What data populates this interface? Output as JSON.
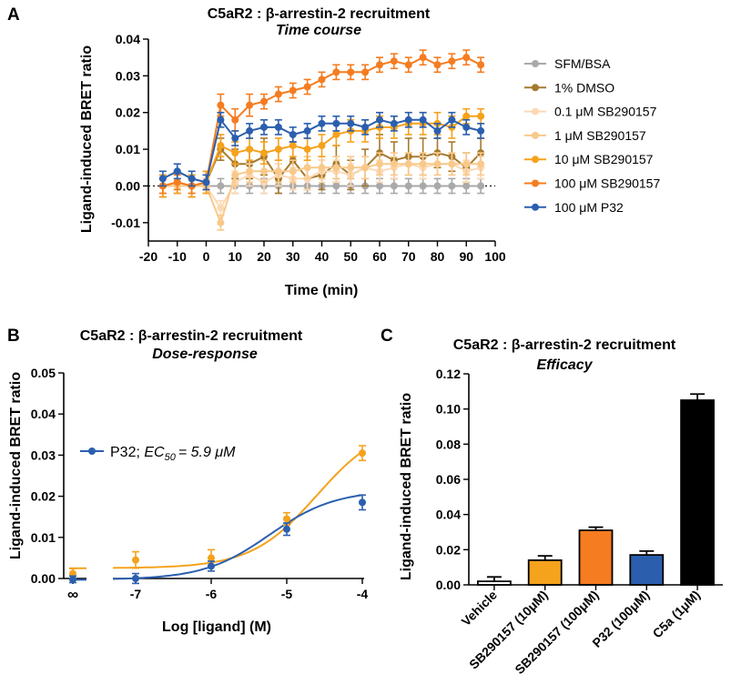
{
  "chart_data": [
    {
      "id": "A",
      "panel_label": "A",
      "type": "line",
      "title": "C5aR2 : β-arrestin-2 recruitment",
      "subtitle": "Time course",
      "xlabel": "Time (min)",
      "ylabel": "Ligand-induced BRET ratio",
      "xlim": [
        -20,
        100
      ],
      "ylim": [
        -0.015,
        0.04
      ],
      "x_ticks": [
        "-20",
        "-10",
        "0",
        "10",
        "20",
        "30",
        "40",
        "50",
        "60",
        "70",
        "80",
        "90",
        "100"
      ],
      "y_ticks": [
        "-0.01",
        "0.00",
        "0.01",
        "0.02",
        "0.03",
        "0.04"
      ],
      "zero_line": "dotted",
      "legend_position": "right",
      "x": [
        -15,
        -10,
        -5,
        0,
        5,
        10,
        15,
        20,
        25,
        30,
        35,
        40,
        45,
        50,
        55,
        60,
        65,
        70,
        75,
        80,
        85,
        90,
        95
      ],
      "series": [
        {
          "name": "SFM/BSA",
          "color": "#a9a9a9",
          "values": [
            0.0,
            0.0,
            0.0,
            0.0,
            0.0,
            0.0,
            0.0,
            0.0,
            0.0,
            0.0,
            0.0,
            0.0,
            0.0,
            0.0,
            0.0,
            0.0,
            0.0,
            0.0,
            0.0,
            0.0,
            0.0,
            0.0,
            0.0
          ],
          "err": [
            0.002,
            0.002,
            0.002,
            0.002,
            0.002,
            0.002,
            0.002,
            0.002,
            0.002,
            0.002,
            0.002,
            0.002,
            0.002,
            0.002,
            0.002,
            0.002,
            0.002,
            0.002,
            0.002,
            0.002,
            0.002,
            0.002,
            0.002
          ]
        },
        {
          "name": "1% DMSO",
          "color": "#a57a2e",
          "values": [
            0.0,
            0.001,
            0.0,
            0.001,
            0.01,
            0.006,
            0.006,
            0.008,
            0.002,
            0.007,
            0.002,
            0.003,
            0.006,
            0.003,
            0.005,
            0.009,
            0.007,
            0.008,
            0.008,
            0.009,
            0.008,
            0.005,
            0.009
          ],
          "err": [
            0.003,
            0.003,
            0.003,
            0.003,
            0.003,
            0.004,
            0.004,
            0.005,
            0.004,
            0.005,
            0.003,
            0.004,
            0.005,
            0.004,
            0.005,
            0.005,
            0.005,
            0.005,
            0.005,
            0.004,
            0.004,
            0.004,
            0.004
          ]
        },
        {
          "name": "0.1 μM SB290157",
          "color": "#fcd9b4",
          "values": [
            0.0,
            0.0,
            0.0,
            0.0,
            -0.006,
            0.001,
            0.003,
            0.001,
            0.003,
            0.002,
            0.002,
            0.004,
            0.004,
            0.003,
            0.005,
            0.004,
            0.005,
            0.006,
            0.005,
            0.006,
            0.006,
            0.004,
            0.005
          ],
          "err": [
            0.002,
            0.002,
            0.002,
            0.002,
            0.002,
            0.003,
            0.003,
            0.003,
            0.003,
            0.003,
            0.003,
            0.003,
            0.003,
            0.003,
            0.003,
            0.003,
            0.003,
            0.003,
            0.003,
            0.003,
            0.003,
            0.003,
            0.003
          ]
        },
        {
          "name": "1 μM SB290157",
          "color": "#f8c98a",
          "values": [
            0.0,
            0.0,
            0.0,
            0.0,
            -0.01,
            0.003,
            0.004,
            0.004,
            0.004,
            0.004,
            0.005,
            0.005,
            0.005,
            0.005,
            0.005,
            0.006,
            0.006,
            0.006,
            0.006,
            0.006,
            0.006,
            0.006,
            0.006
          ],
          "err": [
            0.002,
            0.002,
            0.002,
            0.002,
            0.002,
            0.003,
            0.003,
            0.003,
            0.003,
            0.003,
            0.003,
            0.003,
            0.003,
            0.003,
            0.003,
            0.003,
            0.003,
            0.003,
            0.003,
            0.003,
            0.003,
            0.003,
            0.003
          ]
        },
        {
          "name": "10 μM SB290157",
          "color": "#f5a21d",
          "values": [
            0.0,
            0.001,
            0.0,
            0.001,
            0.011,
            0.009,
            0.01,
            0.009,
            0.01,
            0.011,
            0.01,
            0.011,
            0.014,
            0.015,
            0.015,
            0.016,
            0.016,
            0.017,
            0.017,
            0.017,
            0.016,
            0.019,
            0.019
          ],
          "err": [
            0.003,
            0.003,
            0.003,
            0.003,
            0.003,
            0.003,
            0.003,
            0.003,
            0.003,
            0.003,
            0.003,
            0.003,
            0.003,
            0.003,
            0.003,
            0.003,
            0.003,
            0.003,
            0.003,
            0.003,
            0.003,
            0.002,
            0.002
          ]
        },
        {
          "name": "100 μM SB290157",
          "color": "#f57c20",
          "values": [
            0.0,
            0.001,
            0.0,
            0.001,
            0.022,
            0.018,
            0.022,
            0.023,
            0.025,
            0.026,
            0.027,
            0.029,
            0.031,
            0.031,
            0.031,
            0.033,
            0.034,
            0.033,
            0.035,
            0.033,
            0.034,
            0.035,
            0.033
          ],
          "err": [
            0.002,
            0.002,
            0.002,
            0.002,
            0.003,
            0.003,
            0.003,
            0.002,
            0.002,
            0.002,
            0.002,
            0.002,
            0.002,
            0.002,
            0.002,
            0.002,
            0.002,
            0.002,
            0.002,
            0.002,
            0.002,
            0.002,
            0.002
          ]
        },
        {
          "name": "100 μM P32",
          "color": "#2b5fae",
          "values": [
            0.002,
            0.004,
            0.002,
            0.001,
            0.018,
            0.013,
            0.015,
            0.016,
            0.016,
            0.014,
            0.015,
            0.017,
            0.017,
            0.017,
            0.016,
            0.018,
            0.017,
            0.018,
            0.018,
            0.015,
            0.018,
            0.016,
            0.015
          ],
          "err": [
            0.002,
            0.002,
            0.002,
            0.002,
            0.002,
            0.002,
            0.002,
            0.002,
            0.002,
            0.002,
            0.002,
            0.002,
            0.002,
            0.002,
            0.002,
            0.002,
            0.002,
            0.002,
            0.002,
            0.002,
            0.002,
            0.002,
            0.002
          ]
        }
      ]
    },
    {
      "id": "B",
      "panel_label": "B",
      "type": "scatter",
      "title": "C5aR2 : β-arrestin-2 recruitment",
      "subtitle": "Dose-response",
      "xlabel": "Log [ligand] (M)",
      "ylabel": "Ligand-induced BRET ratio",
      "xlim": [
        -7.3,
        -4
      ],
      "ylim": [
        0,
        0.05
      ],
      "x_ticks": [
        "-7",
        "-6",
        "-5",
        "-4"
      ],
      "x_break_tick": "∞",
      "y_ticks": [
        "0.00",
        "0.01",
        "0.02",
        "0.03",
        "0.04",
        "0.05"
      ],
      "annotation": {
        "label": "P32;",
        "ec50_label": "EC",
        "ec50_sub": "50",
        "ec50_value": "= 5.9 μM",
        "color": "#2b5fae"
      },
      "series": [
        {
          "name": "SB290157",
          "color": "#f5a21d",
          "x": [
            -7,
            -6,
            -5,
            -4
          ],
          "values": [
            0.0045,
            0.005,
            0.0145,
            0.0305
          ],
          "err": [
            0.002,
            0.002,
            0.0015,
            0.0018
          ],
          "x_zero": 0.0012,
          "x_zero_err": 0.0012,
          "fit": {
            "bottom": 0.0025,
            "top": 0.038,
            "logEC50": -4.6,
            "hill": 1
          }
        },
        {
          "name": "P32",
          "color": "#2b5fae",
          "x": [
            -7,
            -6,
            -5,
            -4
          ],
          "values": [
            0.0,
            0.003,
            0.012,
            0.0185
          ],
          "err": [
            0.0012,
            0.0012,
            0.0015,
            0.0018
          ],
          "x_zero": -0.0002,
          "x_zero_err": 0.0008,
          "fit": {
            "bottom": -0.0003,
            "top": 0.0215,
            "logEC50": -5.23,
            "hill": 1
          }
        }
      ]
    },
    {
      "id": "C",
      "panel_label": "C",
      "type": "bar",
      "title": "C5aR2 : β-arrestin-2 recruitment",
      "subtitle": "Efficacy",
      "xlabel": "",
      "ylabel": "Ligand-induced BRET ratio",
      "ylim": [
        0,
        0.12
      ],
      "y_ticks": [
        "0.00",
        "0.02",
        "0.04",
        "0.06",
        "0.08",
        "0.10",
        "0.12"
      ],
      "categories": [
        "Vehicle",
        "SB290157 (10μM)",
        "SB290157 (100μM)",
        "P32 (100μM)",
        "C5a (1μM)"
      ],
      "values": [
        0.002,
        0.014,
        0.031,
        0.017,
        0.105
      ],
      "err": [
        0.0025,
        0.0025,
        0.0018,
        0.0022,
        0.0035
      ],
      "colors": [
        "#ffffff",
        "#f5a21d",
        "#f57c20",
        "#2b5fae",
        "#000000"
      ]
    }
  ]
}
